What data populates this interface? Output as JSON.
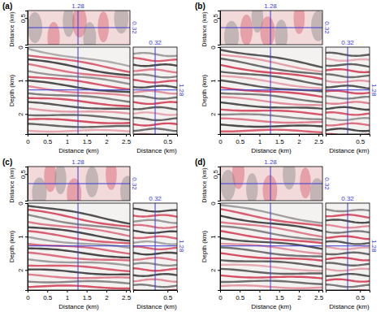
{
  "chart_data": [
    {
      "type": "image",
      "title": "(a)",
      "cursor": {
        "inline_distance": 1.28,
        "crossline_distance": 0.32,
        "depth": 1.28
      },
      "main": {
        "x_label": "Distance (km)",
        "y_label": "Depth (km)",
        "xlim": [
          0,
          2.6
        ],
        "xticks": [
          0,
          0.5,
          1,
          1.5,
          2,
          2.5
        ],
        "ylim": [
          0,
          2.6
        ],
        "yticks": [
          0,
          1,
          2
        ]
      },
      "top": {
        "y_label": "Distance (km)",
        "ylim": [
          0,
          0.64
        ],
        "yticks": [
          0.5
        ]
      },
      "side": {
        "x_label": "Distance (km)",
        "xlim": [
          0,
          0.64
        ],
        "xticks": [
          0.5
        ]
      }
    },
    {
      "type": "image",
      "title": "(b)",
      "cursor": {
        "inline_distance": 1.28,
        "crossline_distance": 0.32,
        "depth": 1.28
      },
      "main": {
        "x_label": "Distance (km)",
        "y_label": "Depth (km)",
        "xlim": [
          0,
          2.6
        ],
        "xticks": [
          0,
          0.5,
          1,
          1.5,
          2,
          2.5
        ],
        "ylim": [
          0,
          2.6
        ],
        "yticks": [
          0,
          1,
          2
        ]
      },
      "top": {
        "y_label": "Distance (km)",
        "ylim": [
          0,
          0.64
        ],
        "yticks": [
          0.5
        ]
      },
      "side": {
        "x_label": "Distance (km)",
        "xlim": [
          0,
          0.64
        ],
        "xticks": [
          0.5
        ]
      }
    },
    {
      "type": "image",
      "title": "(c)",
      "cursor": {
        "inline_distance": 1.28,
        "crossline_distance": 0.32,
        "depth": 1.28
      },
      "main": {
        "x_label": "Distance (km)",
        "y_label": "Depth (km)",
        "xlim": [
          0,
          2.6
        ],
        "xticks": [
          0,
          0.5,
          1,
          1.5,
          2,
          2.5
        ],
        "ylim": [
          0,
          2.6
        ],
        "yticks": [
          0,
          1,
          2
        ]
      },
      "top": {
        "y_label": "Distance (km)",
        "ylim": [
          0,
          0.64
        ],
        "yticks": [
          0.5
        ]
      },
      "side": {
        "x_label": "Distance (km)",
        "xlim": [
          0,
          0.64
        ],
        "xticks": [
          0.5
        ]
      }
    },
    {
      "type": "image",
      "title": "(d)",
      "cursor": {
        "inline_distance": 1.28,
        "crossline_distance": 0.32,
        "depth": 1.28
      },
      "main": {
        "x_label": "Distance (km)",
        "y_label": "Depth (km)",
        "xlim": [
          0,
          2.6
        ],
        "xticks": [
          0,
          0.5,
          1,
          1.5,
          2,
          2.5
        ],
        "ylim": [
          0,
          2.6
        ],
        "yticks": [
          0,
          1,
          2
        ]
      },
      "top": {
        "y_label": "Distance (km)",
        "ylim": [
          0,
          0.64
        ],
        "yticks": [
          0.5
        ]
      },
      "side": {
        "x_label": "Distance (km)",
        "xlim": [
          0,
          0.64
        ],
        "xticks": [
          0.5
        ]
      }
    }
  ]
}
